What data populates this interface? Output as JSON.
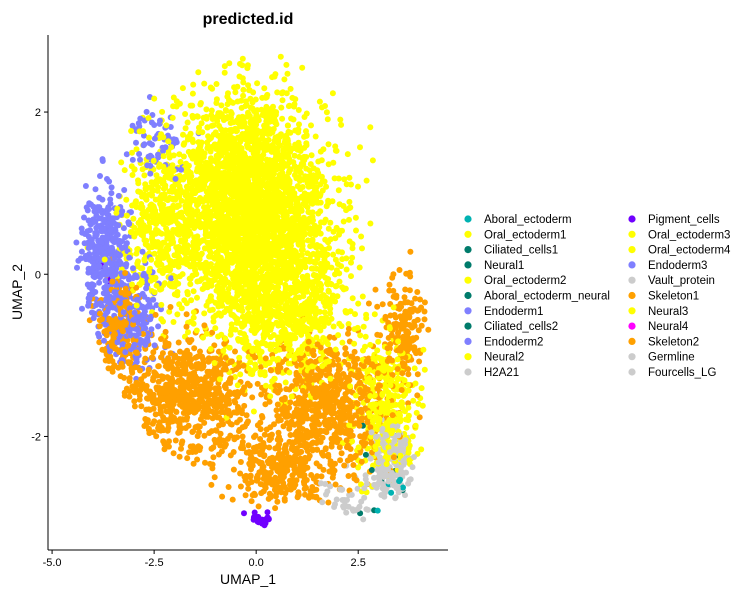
{
  "chart_data": {
    "type": "scatter",
    "title": "predicted.id",
    "xlabel": "UMAP_1",
    "ylabel": "UMAP_2",
    "xlim": [
      -5.1,
      4.7
    ],
    "ylim": [
      -3.4,
      2.95
    ],
    "x_ticks": [
      {
        "value": -5.0,
        "label": "-5.0"
      },
      {
        "value": -2.5,
        "label": "-2.5"
      },
      {
        "value": 0.0,
        "label": "0.0"
      },
      {
        "value": 2.5,
        "label": "2.5"
      }
    ],
    "y_ticks": [
      {
        "value": -2,
        "label": "-2"
      },
      {
        "value": 0,
        "label": "0"
      },
      {
        "value": 2,
        "label": "2"
      }
    ],
    "grid": false,
    "legend_position": "right",
    "legend": [
      {
        "name": "Aboral_ectoderm",
        "color": "#00B2B2"
      },
      {
        "name": "Oral_ectoderm1",
        "color": "#FFFF00"
      },
      {
        "name": "Ciliated_cells1",
        "color": "#007B6B"
      },
      {
        "name": "Neural1",
        "color": "#007B6B"
      },
      {
        "name": "Oral_ectoderm2",
        "color": "#FFFF00"
      },
      {
        "name": "Aboral_ectoderm_neural",
        "color": "#007B6B"
      },
      {
        "name": "Endoderm1",
        "color": "#7F7FFF"
      },
      {
        "name": "Ciliated_cells2",
        "color": "#007B6B"
      },
      {
        "name": "Endoderm2",
        "color": "#7F7FFF"
      },
      {
        "name": "Neural2",
        "color": "#FFFF00"
      },
      {
        "name": "H2A21",
        "color": "#CCCCCC"
      },
      {
        "name": "Pigment_cells",
        "color": "#7000FF"
      },
      {
        "name": "Oral_ectoderm3",
        "color": "#FFFF00"
      },
      {
        "name": "Oral_ectoderm4",
        "color": "#FFFF00"
      },
      {
        "name": "Endoderm3",
        "color": "#7F7FFF"
      },
      {
        "name": "Vault_protein",
        "color": "#CCCCCC"
      },
      {
        "name": "Skeleton1",
        "color": "#FFA000"
      },
      {
        "name": "Neural3",
        "color": "#FFFF00"
      },
      {
        "name": "Neural4",
        "color": "#FF00FF"
      },
      {
        "name": "Skeleton2",
        "color": "#FFA000"
      },
      {
        "name": "Germline",
        "color": "#CCCCCC"
      },
      {
        "name": "Fourcells_LG",
        "color": "#CCCCCC"
      }
    ],
    "clusters": [
      {
        "group": "Oral_ectoderm",
        "color": "#FFFF00",
        "shape": "ellipse",
        "center": [
          -0.2,
          0.9
        ],
        "spread": [
          1.9,
          1.3
        ],
        "count": 2600
      },
      {
        "group": "Oral_ectoderm",
        "color": "#FFFF00",
        "shape": "ellipse",
        "center": [
          0.6,
          -0.3
        ],
        "spread": [
          1.6,
          1.0
        ],
        "count": 1000
      },
      {
        "group": "Oral_ectoderm",
        "color": "#FFFF00",
        "shape": "ellipse",
        "center": [
          3.2,
          -1.6
        ],
        "spread": [
          0.8,
          0.8
        ],
        "count": 350
      },
      {
        "group": "Oral_ectoderm",
        "color": "#FFFF00",
        "shape": "ellipse",
        "center": [
          -2.3,
          0.6
        ],
        "spread": [
          1.0,
          1.0
        ],
        "count": 400
      },
      {
        "group": "Skeleton",
        "color": "#FFA000",
        "shape": "ellipse",
        "center": [
          -1.6,
          -1.5
        ],
        "spread": [
          1.5,
          0.7
        ],
        "count": 650
      },
      {
        "group": "Skeleton",
        "color": "#FFA000",
        "shape": "ellipse",
        "center": [
          1.8,
          -1.6
        ],
        "spread": [
          1.5,
          0.8
        ],
        "count": 650
      },
      {
        "group": "Skeleton",
        "color": "#FFA000",
        "shape": "ellipse",
        "center": [
          0.5,
          -2.4
        ],
        "spread": [
          1.2,
          0.5
        ],
        "count": 300
      },
      {
        "group": "Skeleton",
        "color": "#FFA000",
        "shape": "ellipse",
        "center": [
          -3.3,
          -0.7
        ],
        "spread": [
          0.7,
          0.6
        ],
        "count": 180
      },
      {
        "group": "Skeleton",
        "color": "#FFA000",
        "shape": "ellipse",
        "center": [
          3.6,
          -0.7
        ],
        "spread": [
          0.5,
          0.6
        ],
        "count": 160
      },
      {
        "group": "Endoderm",
        "color": "#7F7FFF",
        "shape": "ellipse",
        "center": [
          -3.7,
          0.2
        ],
        "spread": [
          0.6,
          0.8
        ],
        "count": 380
      },
      {
        "group": "Endoderm",
        "color": "#7F7FFF",
        "shape": "ellipse",
        "center": [
          -3.0,
          -0.5
        ],
        "spread": [
          0.7,
          0.6
        ],
        "count": 160
      },
      {
        "group": "Endoderm",
        "color": "#7F7FFF",
        "shape": "ellipse",
        "center": [
          -2.5,
          1.6
        ],
        "spread": [
          0.7,
          0.4
        ],
        "count": 60
      },
      {
        "group": "Germline",
        "color": "#CCCCCC",
        "shape": "ellipse",
        "center": [
          3.3,
          -2.3
        ],
        "spread": [
          0.5,
          0.45
        ],
        "count": 160
      },
      {
        "group": "Germline",
        "color": "#CCCCCC",
        "shape": "ellipse",
        "center": [
          2.3,
          -2.8
        ],
        "spread": [
          0.6,
          0.3
        ],
        "count": 40
      },
      {
        "group": "Pigment_cells",
        "color": "#7000FF",
        "shape": "ellipse",
        "center": [
          0.0,
          -3.05
        ],
        "spread": [
          0.35,
          0.1
        ],
        "count": 30
      },
      {
        "group": "Pigment_cells",
        "color": "#7000FF",
        "shape": "ellipse",
        "center": [
          -3.6,
          -0.2
        ],
        "spread": [
          0.5,
          0.4
        ],
        "count": 6
      },
      {
        "group": "Ciliated_cells",
        "color": "#007B6B",
        "shape": "ellipse",
        "center": [
          3.0,
          -2.4
        ],
        "spread": [
          1.0,
          0.6
        ],
        "count": 12
      },
      {
        "group": "Aboral_ectoderm",
        "color": "#00B2B2",
        "shape": "ellipse",
        "center": [
          3.2,
          -2.6
        ],
        "spread": [
          0.6,
          0.4
        ],
        "count": 6
      }
    ],
    "outline": {
      "x": [
        -4.6,
        -4.2,
        -3.5,
        -2.7,
        -1.5,
        -0.3,
        1.2,
        2.3,
        3.1,
        3.6,
        4.2,
        4.3,
        4.2,
        3.9,
        3.4,
        2.8,
        2.0,
        1.0,
        0.2,
        -0.6,
        -1.5,
        -2.6,
        -3.6,
        -4.3
      ],
      "y": [
        0.3,
        1.2,
        1.9,
        2.3,
        2.55,
        2.7,
        2.7,
        2.4,
        1.7,
        0.7,
        -0.4,
        -1.2,
        -2.1,
        -2.6,
        -2.95,
        -3.1,
        -2.9,
        -2.8,
        -3.1,
        -2.9,
        -2.5,
        -2.0,
        -1.2,
        -0.4
      ]
    }
  }
}
